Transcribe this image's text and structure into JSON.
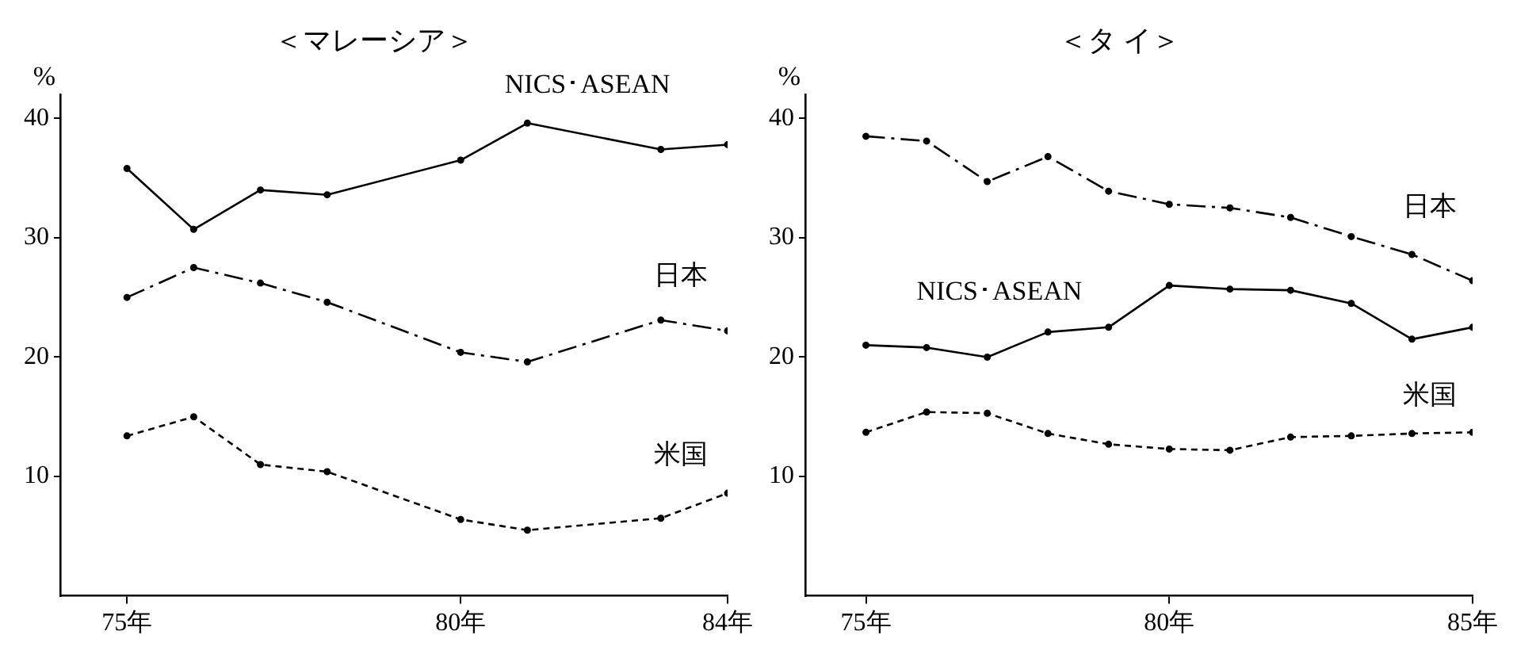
{
  "chart_data": [
    {
      "type": "line",
      "title": "＜マレーシア＞",
      "ylabel": "%",
      "xlim": [
        74,
        84
      ],
      "xticks": [
        {
          "value": 75,
          "label": "75年"
        },
        {
          "value": 80,
          "label": "80年"
        },
        {
          "value": 84,
          "label": "84年"
        }
      ],
      "ylim": [
        0,
        42
      ],
      "yticks": [
        10,
        20,
        30,
        40
      ],
      "grid": false,
      "legend": false,
      "marker": "circle",
      "series": [
        {
          "name": "NICS･ASEAN",
          "color": "#000000",
          "line_style": "solid",
          "x": [
            75,
            76,
            77,
            78,
            80,
            81,
            83,
            84
          ],
          "values": [
            35.8,
            30.7,
            34.0,
            33.6,
            36.5,
            39.6,
            37.4,
            37.8
          ]
        },
        {
          "name": "日本",
          "color": "#000000",
          "line_style": "dashed",
          "x": [
            75,
            76,
            77,
            78,
            80,
            81,
            83,
            84
          ],
          "values": [
            25.0,
            27.5,
            26.2,
            24.6,
            20.4,
            19.6,
            23.1,
            22.2
          ]
        },
        {
          "name": "米国",
          "color": "#000000",
          "line_style": "dotted",
          "x": [
            75,
            76,
            77,
            78,
            80,
            81,
            83,
            84
          ],
          "values": [
            13.4,
            15.0,
            11.0,
            10.4,
            6.4,
            5.5,
            6.5,
            8.6
          ]
        }
      ]
    },
    {
      "type": "line",
      "title": "＜タ イ＞",
      "ylabel": "%",
      "xlim": [
        74,
        85
      ],
      "xticks": [
        {
          "value": 75,
          "label": "75年"
        },
        {
          "value": 80,
          "label": "80年"
        },
        {
          "value": 85,
          "label": "85年"
        }
      ],
      "ylim": [
        0,
        42
      ],
      "yticks": [
        10,
        20,
        30,
        40
      ],
      "grid": false,
      "legend": false,
      "marker": "circle",
      "series": [
        {
          "name": "日本",
          "color": "#000000",
          "line_style": "dashed",
          "x": [
            75,
            76,
            77,
            78,
            79,
            80,
            81,
            82,
            83,
            84,
            85
          ],
          "values": [
            38.5,
            38.1,
            34.7,
            36.8,
            33.9,
            32.8,
            32.5,
            31.7,
            30.1,
            28.6,
            26.4
          ]
        },
        {
          "name": "NICS･ASEAN",
          "color": "#000000",
          "line_style": "solid",
          "x": [
            75,
            76,
            77,
            78,
            79,
            80,
            81,
            82,
            83,
            84,
            85
          ],
          "values": [
            21.0,
            20.8,
            20.0,
            22.1,
            22.5,
            26.0,
            25.7,
            25.6,
            24.5,
            21.5,
            22.5
          ]
        },
        {
          "name": "米国",
          "color": "#000000",
          "line_style": "dotted",
          "x": [
            75,
            76,
            77,
            78,
            79,
            80,
            81,
            82,
            83,
            84,
            85
          ],
          "values": [
            13.7,
            15.4,
            15.3,
            13.6,
            12.7,
            12.3,
            12.2,
            13.3,
            13.4,
            13.6,
            13.7
          ]
        }
      ]
    }
  ]
}
